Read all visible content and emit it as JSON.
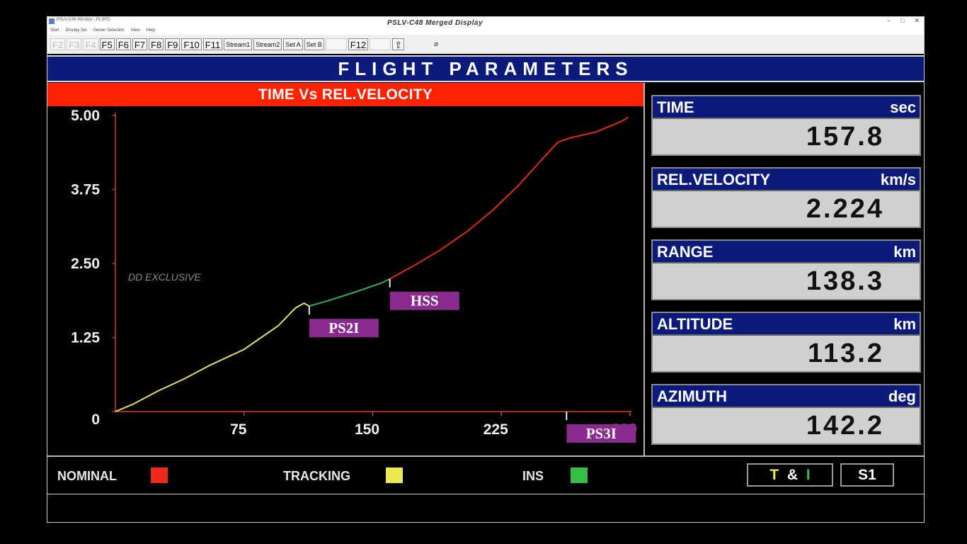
{
  "window": {
    "title": "PSLV-C48 Window - PLSPD",
    "center_title": "PSLV-C48 Merged Display",
    "controls": [
      "–",
      "□",
      "✕"
    ]
  },
  "menu": [
    "Start",
    "Display Sel",
    "Server Selection",
    "View",
    "Help"
  ],
  "toolbar": {
    "buttons": [
      {
        "label": "F2",
        "enabled": false
      },
      {
        "label": "F3",
        "enabled": false
      },
      {
        "label": "F4",
        "enabled": false
      },
      {
        "label": "F5",
        "enabled": true
      },
      {
        "label": "F6",
        "enabled": true
      },
      {
        "label": "F7",
        "enabled": true
      },
      {
        "label": "F8",
        "enabled": true
      },
      {
        "label": "F9",
        "enabled": true
      },
      {
        "label": "F10",
        "enabled": true
      },
      {
        "label": "F11",
        "enabled": true
      },
      {
        "label": "Stream1",
        "enabled": true,
        "small": true
      },
      {
        "label": "Stream2",
        "enabled": true,
        "small": true
      },
      {
        "label": "Set A",
        "enabled": true,
        "small": true
      },
      {
        "label": "Set B",
        "enabled": true,
        "small": true
      },
      {
        "label": "",
        "enabled": false
      },
      {
        "label": "F12",
        "enabled": true
      },
      {
        "label": "",
        "enabled": false
      },
      {
        "label": "⇧",
        "enabled": true
      }
    ],
    "extra": "⌀"
  },
  "banner": {
    "title": "FLIGHT PARAMETERS"
  },
  "chart_data": {
    "type": "line",
    "title": "TIME Vs REL.VELOCITY",
    "xlabel": "",
    "ylabel": "",
    "xlim": [
      0,
      300
    ],
    "ylim": [
      0,
      5
    ],
    "x_ticks": [
      75,
      150,
      225,
      300
    ],
    "x_tick_labels": [
      "75",
      "150",
      "225",
      "300"
    ],
    "y_ticks": [
      0,
      1.25,
      2.5,
      3.75,
      5
    ],
    "y_tick_labels": [
      "0",
      "1.25",
      "2.50",
      "3.75",
      "5.00"
    ],
    "grid": false,
    "series": [
      {
        "color": "#e8e05a",
        "x": [
          0,
          10,
          25,
          40,
          55,
          75,
          95,
          105,
          110,
          113
        ],
        "y": [
          0,
          0.12,
          0.35,
          0.55,
          0.78,
          1.05,
          1.45,
          1.75,
          1.83,
          1.78
        ]
      },
      {
        "color": "#32b050",
        "x": [
          113,
          125,
          140,
          155,
          160
        ],
        "y": [
          1.78,
          1.88,
          2.02,
          2.17,
          2.24
        ]
      },
      {
        "color": "#e02a10",
        "x": [
          160,
          175,
          190,
          205,
          220,
          235,
          250,
          258,
          265,
          280,
          295,
          299
        ],
        "y": [
          2.24,
          2.48,
          2.74,
          3.04,
          3.4,
          3.82,
          4.3,
          4.55,
          4.62,
          4.72,
          4.9,
          4.97
        ]
      }
    ],
    "events": [
      {
        "label": "PS2I",
        "x": 113
      },
      {
        "label": "HSS",
        "x": 160
      },
      {
        "label": "PS3I",
        "x": 263
      }
    ],
    "watermark": "DD EXCLUSIVE"
  },
  "params": [
    {
      "label": "TIME",
      "unit": "sec",
      "value": "157.8"
    },
    {
      "label": "REL.VELOCITY",
      "unit": "km/s",
      "value": "2.224"
    },
    {
      "label": "RANGE",
      "unit": "km",
      "value": "138.3"
    },
    {
      "label": "ALTITUDE",
      "unit": "km",
      "value": "113.2"
    },
    {
      "label": "AZIMUTH",
      "unit": "deg",
      "value": "142.2"
    }
  ],
  "legend": [
    {
      "label": "NOMINAL",
      "color": "#ee2a1a"
    },
    {
      "label": "TRACKING",
      "color": "#ece84e"
    },
    {
      "label": "INS",
      "color": "#33c044"
    }
  ],
  "status": {
    "mode_parts": [
      {
        "text": "T",
        "color": "#ece84e"
      },
      {
        "text": "&",
        "color": "#ffffff"
      },
      {
        "text": "I",
        "color": "#33c044"
      }
    ],
    "stage": "S1"
  }
}
